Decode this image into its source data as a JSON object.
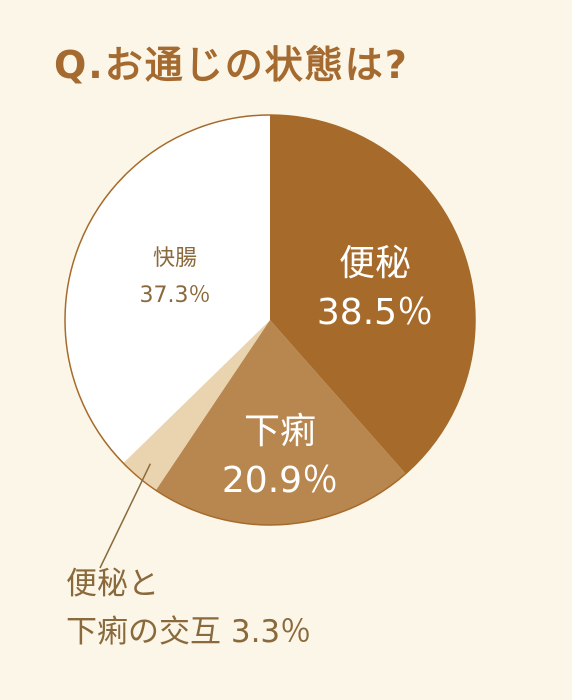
{
  "title": "Q.お通じの状態は?",
  "chart_data": {
    "type": "pie",
    "title": "Q.お通じの状態は?",
    "slices": [
      {
        "label": "便秘",
        "value": 38.5,
        "display": "38.5％",
        "color": "#a66a2b"
      },
      {
        "label": "下痢",
        "value": 20.9,
        "display": "20.9％",
        "color": "#b8874f"
      },
      {
        "label": "便秘と下痢の交互",
        "label_lines": [
          "便秘と",
          "下痢の交互 3.3％"
        ],
        "value": 3.3,
        "display": "3.3％",
        "color": "#ead4b0"
      },
      {
        "label": "快腸",
        "value": 37.3,
        "display": "37.3％",
        "color": "#ffffff"
      }
    ],
    "start_angle": "12 o'clock",
    "direction": "clockwise",
    "outline_color": "#a66a2b"
  }
}
